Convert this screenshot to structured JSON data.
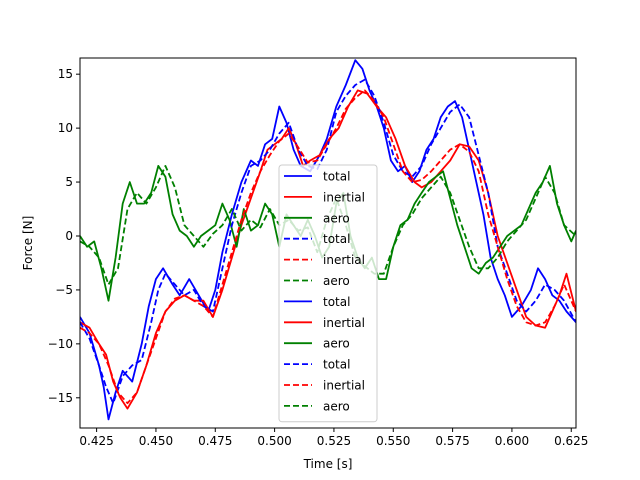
{
  "chart_data": {
    "type": "line",
    "title": "",
    "xlabel": "Time [s]",
    "ylabel": "Force [N]",
    "xlim": [
      0.418,
      0.627
    ],
    "ylim": [
      -17.8,
      16.5
    ],
    "xticks": [
      0.425,
      0.45,
      0.475,
      0.5,
      0.525,
      0.55,
      0.575,
      0.6,
      0.625
    ],
    "xtick_labels": [
      "0.425",
      "0.450",
      "0.475",
      "0.500",
      "0.525",
      "0.550",
      "0.575",
      "0.600",
      "0.625"
    ],
    "yticks": [
      -15,
      -10,
      -5,
      0,
      5,
      10,
      15
    ],
    "ytick_labels": [
      "−15",
      "−10",
      "−5",
      "0",
      "5",
      "10",
      "15"
    ],
    "grid": false,
    "legend_position": "center",
    "colors": {
      "total": "#0000ff",
      "inertial": "#ff0000",
      "aero": "#008000"
    },
    "series": [
      {
        "name": "total",
        "style": "solid",
        "color": "#0000ff",
        "x": [
          0.418,
          0.422,
          0.426,
          0.428,
          0.43,
          0.433,
          0.436,
          0.44,
          0.444,
          0.447,
          0.45,
          0.453,
          0.457,
          0.46,
          0.464,
          0.468,
          0.472,
          0.475,
          0.478,
          0.482,
          0.486,
          0.49,
          0.493,
          0.496,
          0.499,
          0.502,
          0.505,
          0.508,
          0.511,
          0.515,
          0.519,
          0.522,
          0.526,
          0.53,
          0.534,
          0.537,
          0.54,
          0.543,
          0.546,
          0.549,
          0.552,
          0.555,
          0.558,
          0.561,
          0.564,
          0.567,
          0.57,
          0.573,
          0.576,
          0.579,
          0.582,
          0.585,
          0.588,
          0.591,
          0.594,
          0.597,
          0.6,
          0.604,
          0.608,
          0.611,
          0.614,
          0.617,
          0.62,
          0.623,
          0.627
        ],
        "y": [
          -7.5,
          -9,
          -12,
          -14,
          -17,
          -14.5,
          -12.5,
          -13.5,
          -10,
          -6.5,
          -4,
          -3,
          -4.5,
          -5.5,
          -4,
          -5.5,
          -7,
          -5,
          -1.5,
          2,
          5,
          7,
          6.5,
          8.5,
          9,
          12,
          10.5,
          8,
          6.5,
          6,
          7.5,
          9,
          12,
          14,
          16.3,
          15.5,
          13.5,
          12,
          10,
          7,
          6,
          6.5,
          5,
          6,
          8,
          9,
          11,
          12,
          12.5,
          11,
          8,
          5,
          2,
          -2,
          -4,
          -5.5,
          -7.5,
          -6.5,
          -5,
          -3,
          -4,
          -5.5,
          -6,
          -7,
          -8
        ]
      },
      {
        "name": "inertial",
        "style": "solid",
        "color": "#ff0000",
        "x": [
          0.418,
          0.422,
          0.426,
          0.429,
          0.432,
          0.435,
          0.438,
          0.442,
          0.446,
          0.45,
          0.454,
          0.458,
          0.462,
          0.466,
          0.47,
          0.474,
          0.478,
          0.482,
          0.486,
          0.49,
          0.494,
          0.497,
          0.5,
          0.503,
          0.506,
          0.509,
          0.512,
          0.515,
          0.519,
          0.523,
          0.527,
          0.531,
          0.535,
          0.539,
          0.543,
          0.547,
          0.551,
          0.555,
          0.559,
          0.562,
          0.566,
          0.57,
          0.574,
          0.578,
          0.582,
          0.586,
          0.59,
          0.594,
          0.598,
          0.602,
          0.606,
          0.61,
          0.614,
          0.617,
          0.62,
          0.623,
          0.627
        ],
        "y": [
          -8,
          -8.5,
          -10,
          -11,
          -13.5,
          -15,
          -16,
          -14.5,
          -12,
          -9,
          -7,
          -6,
          -5.5,
          -6,
          -6,
          -7.5,
          -5,
          -2,
          1,
          3.5,
          6,
          8,
          8.5,
          9,
          10,
          8.5,
          6.5,
          7,
          7.5,
          9,
          10,
          12,
          13.5,
          13.2,
          12,
          11,
          9,
          6.5,
          5,
          4.5,
          5,
          6,
          7,
          8.5,
          8.3,
          7,
          4,
          0,
          -2.5,
          -5,
          -7.5,
          -8.3,
          -8.5,
          -7,
          -5.5,
          -3.5,
          -7
        ]
      },
      {
        "name": "aero",
        "style": "solid",
        "color": "#008000",
        "x": [
          0.418,
          0.421,
          0.424,
          0.427,
          0.43,
          0.433,
          0.436,
          0.439,
          0.442,
          0.445,
          0.448,
          0.451,
          0.454,
          0.457,
          0.46,
          0.463,
          0.466,
          0.469,
          0.472,
          0.475,
          0.478,
          0.481,
          0.484,
          0.487,
          0.49,
          0.493,
          0.496,
          0.499,
          0.502,
          0.505,
          0.508,
          0.511,
          0.514,
          0.517,
          0.52,
          0.523,
          0.526,
          0.529,
          0.532,
          0.535,
          0.538,
          0.541,
          0.544,
          0.547,
          0.55,
          0.553,
          0.556,
          0.559,
          0.562,
          0.565,
          0.568,
          0.571,
          0.574,
          0.577,
          0.58,
          0.583,
          0.586,
          0.589,
          0.592,
          0.595,
          0.598,
          0.601,
          0.604,
          0.607,
          0.61,
          0.613,
          0.616,
          0.619,
          0.622,
          0.625,
          0.627
        ],
        "y": [
          0,
          -1,
          -0.5,
          -3,
          -6,
          -2,
          3,
          5,
          3,
          3,
          4,
          6.5,
          5.5,
          2,
          0.5,
          0,
          -1,
          0,
          0.5,
          1,
          3,
          1.5,
          -1,
          2.5,
          0.5,
          1,
          3,
          2,
          -1,
          2,
          1,
          0,
          1.5,
          0,
          -2,
          -1,
          3,
          4,
          0,
          -2,
          -3,
          -2,
          -4,
          -4,
          -1,
          1,
          1.5,
          3,
          4,
          5,
          5.5,
          6,
          3.5,
          1,
          -1,
          -3,
          -3.5,
          -2.5,
          -2,
          -1,
          0,
          0.5,
          1,
          2.5,
          4,
          5,
          6.5,
          3,
          1,
          -0.5,
          0.5
        ]
      },
      {
        "name": "total",
        "style": "dashed",
        "color": "#0000ff",
        "x": [
          0.418,
          0.422,
          0.426,
          0.429,
          0.432,
          0.436,
          0.44,
          0.444,
          0.448,
          0.451,
          0.454,
          0.458,
          0.462,
          0.466,
          0.47,
          0.474,
          0.478,
          0.482,
          0.486,
          0.49,
          0.494,
          0.498,
          0.502,
          0.506,
          0.51,
          0.514,
          0.518,
          0.522,
          0.526,
          0.53,
          0.534,
          0.538,
          0.542,
          0.546,
          0.55,
          0.554,
          0.558,
          0.562,
          0.566,
          0.57,
          0.574,
          0.578,
          0.582,
          0.586,
          0.59,
          0.594,
          0.598,
          0.602,
          0.606,
          0.61,
          0.614,
          0.618,
          0.622,
          0.627
        ],
        "y": [
          -8,
          -9.5,
          -12,
          -14,
          -15.5,
          -13,
          -12,
          -11.5,
          -8,
          -5,
          -3.5,
          -4.5,
          -5.5,
          -5,
          -6.5,
          -7,
          -3,
          1,
          4,
          6.5,
          7,
          8,
          9.5,
          10.5,
          8,
          6.5,
          6.2,
          8,
          11.5,
          13,
          14,
          14.5,
          13,
          10.5,
          7.5,
          6,
          5.5,
          6.5,
          8.5,
          10,
          11.5,
          12.2,
          11,
          7.5,
          4,
          -1,
          -3.5,
          -6,
          -7,
          -6,
          -4.5,
          -5,
          -6,
          -8
        ]
      },
      {
        "name": "inertial",
        "style": "dashed",
        "color": "#ff0000",
        "x": [
          0.418,
          0.422,
          0.426,
          0.43,
          0.434,
          0.438,
          0.442,
          0.446,
          0.45,
          0.454,
          0.458,
          0.462,
          0.466,
          0.47,
          0.474,
          0.478,
          0.482,
          0.486,
          0.49,
          0.494,
          0.498,
          0.502,
          0.506,
          0.51,
          0.514,
          0.518,
          0.522,
          0.526,
          0.53,
          0.534,
          0.538,
          0.542,
          0.546,
          0.55,
          0.554,
          0.558,
          0.562,
          0.566,
          0.57,
          0.574,
          0.578,
          0.582,
          0.586,
          0.59,
          0.594,
          0.598,
          0.602,
          0.606,
          0.61,
          0.614,
          0.618,
          0.622,
          0.627
        ],
        "y": [
          -8.5,
          -9,
          -10,
          -12,
          -14.5,
          -15.5,
          -14.5,
          -12,
          -9.5,
          -7,
          -5.8,
          -5.5,
          -6,
          -6.5,
          -7.5,
          -4.5,
          -1.5,
          1.5,
          4,
          6,
          7.5,
          8.8,
          9.5,
          8.2,
          6.8,
          7,
          8.5,
          10,
          11.8,
          12.8,
          13.5,
          12.5,
          11,
          8.5,
          6,
          5,
          5.2,
          6,
          7,
          8,
          8.5,
          7.8,
          6,
          2,
          -1,
          -4,
          -6.5,
          -8,
          -8.3,
          -8,
          -6.5,
          -4.5,
          -7
        ]
      },
      {
        "name": "aero",
        "style": "dashed",
        "color": "#008000",
        "x": [
          0.418,
          0.422,
          0.426,
          0.43,
          0.434,
          0.438,
          0.442,
          0.446,
          0.45,
          0.454,
          0.458,
          0.462,
          0.466,
          0.47,
          0.474,
          0.478,
          0.482,
          0.486,
          0.49,
          0.494,
          0.498,
          0.502,
          0.506,
          0.51,
          0.514,
          0.518,
          0.522,
          0.526,
          0.53,
          0.534,
          0.538,
          0.542,
          0.546,
          0.55,
          0.554,
          0.558,
          0.562,
          0.566,
          0.57,
          0.574,
          0.578,
          0.582,
          0.586,
          0.59,
          0.594,
          0.598,
          0.602,
          0.606,
          0.61,
          0.614,
          0.618,
          0.622,
          0.627
        ],
        "y": [
          -0.5,
          -1,
          -2,
          -4.5,
          -3,
          2.5,
          4,
          3,
          4.5,
          6.5,
          4.5,
          1,
          0,
          -1,
          0.2,
          1,
          2.5,
          0.5,
          1.5,
          0.8,
          2.5,
          1,
          1.5,
          0.5,
          0.8,
          -1.5,
          1.5,
          3.5,
          1,
          -2,
          -2.8,
          -3.5,
          -3.5,
          -1,
          1,
          2,
          3.5,
          4.5,
          5.5,
          4,
          1.5,
          -1,
          -3,
          -3,
          -2,
          -0.5,
          0.5,
          1.5,
          3.5,
          5.5,
          4,
          1,
          0
        ]
      }
    ],
    "legend": [
      {
        "label": "total",
        "color": "#0000ff",
        "style": "solid"
      },
      {
        "label": "inertial",
        "color": "#ff0000",
        "style": "solid"
      },
      {
        "label": "aero",
        "color": "#008000",
        "style": "solid"
      },
      {
        "label": "total",
        "color": "#0000ff",
        "style": "dashed"
      },
      {
        "label": "inertial",
        "color": "#ff0000",
        "style": "dashed"
      },
      {
        "label": "aero",
        "color": "#008000",
        "style": "dashed"
      },
      {
        "label": "total",
        "color": "#0000ff",
        "style": "solid"
      },
      {
        "label": "inertial",
        "color": "#ff0000",
        "style": "solid"
      },
      {
        "label": "aero",
        "color": "#008000",
        "style": "solid"
      },
      {
        "label": "total",
        "color": "#0000ff",
        "style": "dashed"
      },
      {
        "label": "inertial",
        "color": "#ff0000",
        "style": "dashed"
      },
      {
        "label": "aero",
        "color": "#008000",
        "style": "dashed"
      }
    ]
  }
}
